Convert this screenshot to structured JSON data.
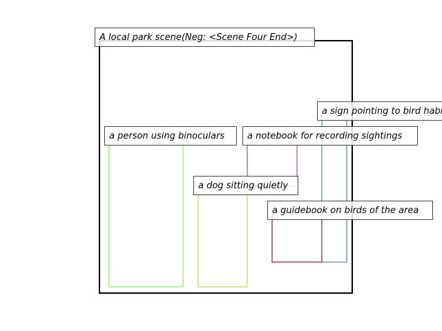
{
  "scene": {
    "caption": "A local park scene(Neg: <Scene Four End>)",
    "frame_color": "#000000"
  },
  "objects": [
    {
      "label": "a person using binoculars",
      "color": "#aaff8c"
    },
    {
      "label": "a dog sitting quietly",
      "color": "#d8e88a"
    },
    {
      "label": "a notebook for recording sightings",
      "color": "#d58ae0"
    },
    {
      "label": "a sign pointing to bird habitats",
      "color": "#97b7c8"
    },
    {
      "label": "a guidebook on birds of the area",
      "color": "#b87293"
    }
  ]
}
